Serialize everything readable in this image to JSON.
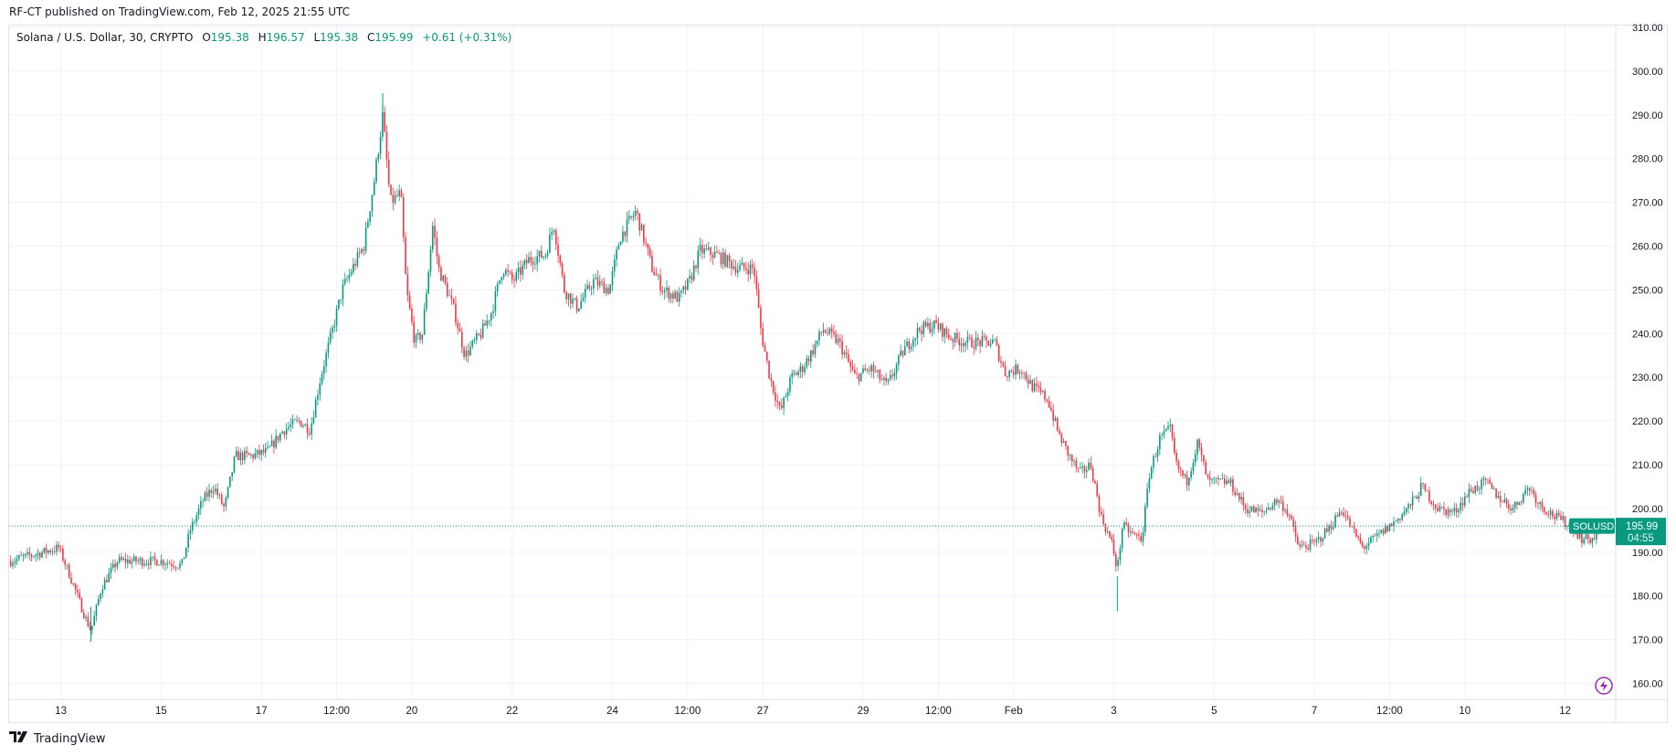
{
  "published": "RF-CT published on TradingView.com, Feb 12, 2025 21:55 UTC",
  "legend": {
    "symbol": "Solana / U.S. Dollar, 30, CRYPTO",
    "o_label": "O",
    "o": "195.38",
    "h_label": "H",
    "h": "196.57",
    "l_label": "L",
    "l": "195.38",
    "c_label": "C",
    "c": "195.99",
    "change": "+0.61 (+0.31%)"
  },
  "last_price": {
    "ticker": "SOLUSD",
    "price": "195.99",
    "countdown": "04:55",
    "value": 195.99
  },
  "brand": "TradingView",
  "colors": {
    "up": "#089981",
    "down": "#f23645",
    "grid": "#f0f3fa",
    "text": "#131722",
    "accent": "#9c27b0"
  },
  "icons": [
    "tradingview-logo-icon",
    "lightning-icon"
  ],
  "chart_data": {
    "type": "candlestick",
    "title": "Solana / U.S. Dollar, 30, CRYPTO",
    "x_unit": "days since Jan 12 2025 00:00 UTC",
    "xlim": [
      -0.2,
      31.75
    ],
    "ylim": [
      157,
      311
    ],
    "grid": true,
    "y_ticks": [
      "160.00",
      "170.00",
      "180.00",
      "190.00",
      "200.00",
      "210.00",
      "220.00",
      "230.00",
      "240.00",
      "250.00",
      "260.00",
      "270.00",
      "280.00",
      "290.00",
      "300.00",
      "310.00"
    ],
    "x_ticks": [
      {
        "d": 1,
        "label": "13"
      },
      {
        "d": 3,
        "label": "15"
      },
      {
        "d": 5,
        "label": "17"
      },
      {
        "d": 6.5,
        "label": "12:00"
      },
      {
        "d": 8,
        "label": "20"
      },
      {
        "d": 10,
        "label": "22"
      },
      {
        "d": 12,
        "label": "24"
      },
      {
        "d": 13.5,
        "label": "12:00"
      },
      {
        "d": 15,
        "label": "27"
      },
      {
        "d": 17,
        "label": "29"
      },
      {
        "d": 18.5,
        "label": "12:00"
      },
      {
        "d": 20,
        "label": "Feb"
      },
      {
        "d": 22,
        "label": "3"
      },
      {
        "d": 24,
        "label": "5"
      },
      {
        "d": 26,
        "label": "7"
      },
      {
        "d": 27.5,
        "label": "12:00"
      },
      {
        "d": 29,
        "label": "10"
      },
      {
        "d": 31,
        "label": "12"
      }
    ],
    "close_path": [
      [
        0,
        188
      ],
      [
        0.64,
        190
      ],
      [
        0.96,
        191
      ],
      [
        1.17,
        185
      ],
      [
        1.49,
        175
      ],
      [
        1.6,
        172
      ],
      [
        1.81,
        182
      ],
      [
        2.13,
        188
      ],
      [
        2.56,
        188
      ],
      [
        2.99,
        188
      ],
      [
        3.41,
        187
      ],
      [
        3.58,
        195
      ],
      [
        3.84,
        202
      ],
      [
        4.05,
        205
      ],
      [
        4.26,
        200
      ],
      [
        4.48,
        212
      ],
      [
        4.8,
        212
      ],
      [
        5.12,
        213
      ],
      [
        5.44,
        218
      ],
      [
        5.76,
        220
      ],
      [
        5.97,
        218
      ],
      [
        6.18,
        230
      ],
      [
        6.4,
        240
      ],
      [
        6.61,
        250
      ],
      [
        6.82,
        255
      ],
      [
        7.04,
        260
      ],
      [
        7.25,
        275
      ],
      [
        7.42,
        290
      ],
      [
        7.57,
        270
      ],
      [
        7.78,
        272
      ],
      [
        7.89,
        250
      ],
      [
        8.06,
        238
      ],
      [
        8.21,
        240
      ],
      [
        8.42,
        265
      ],
      [
        8.53,
        255
      ],
      [
        8.7,
        250
      ],
      [
        8.85,
        245
      ],
      [
        9.06,
        235
      ],
      [
        9.38,
        240
      ],
      [
        9.59,
        245
      ],
      [
        9.81,
        255
      ],
      [
        10.02,
        252
      ],
      [
        10.34,
        257
      ],
      [
        10.66,
        258
      ],
      [
        10.83,
        265
      ],
      [
        11.04,
        250
      ],
      [
        11.3,
        246
      ],
      [
        11.62,
        252
      ],
      [
        11.94,
        250
      ],
      [
        12.15,
        262
      ],
      [
        12.47,
        268
      ],
      [
        12.79,
        255
      ],
      [
        13.01,
        250
      ],
      [
        13.33,
        248
      ],
      [
        13.54,
        252
      ],
      [
        13.75,
        259
      ],
      [
        14.07,
        258
      ],
      [
        14.5,
        255
      ],
      [
        14.82,
        255
      ],
      [
        14.97,
        240
      ],
      [
        15.14,
        230
      ],
      [
        15.35,
        222
      ],
      [
        15.57,
        230
      ],
      [
        15.78,
        232
      ],
      [
        15.99,
        236
      ],
      [
        16.2,
        241
      ],
      [
        16.52,
        238
      ],
      [
        16.84,
        230
      ],
      [
        17.16,
        232
      ],
      [
        17.48,
        228
      ],
      [
        17.8,
        236
      ],
      [
        18.12,
        241
      ],
      [
        18.44,
        242
      ],
      [
        18.76,
        239
      ],
      [
        19.08,
        238
      ],
      [
        19.4,
        238
      ],
      [
        19.62,
        238
      ],
      [
        19.83,
        231
      ],
      [
        20.15,
        232
      ],
      [
        20.36,
        228
      ],
      [
        20.68,
        225
      ],
      [
        20.9,
        217
      ],
      [
        21.11,
        212
      ],
      [
        21.32,
        208
      ],
      [
        21.54,
        210
      ],
      [
        21.75,
        198
      ],
      [
        21.96,
        192
      ],
      [
        22.07,
        186
      ],
      [
        22.17,
        196
      ],
      [
        22.39,
        194
      ],
      [
        22.56,
        193
      ],
      [
        22.71,
        208
      ],
      [
        22.92,
        216
      ],
      [
        23.13,
        218
      ],
      [
        23.24,
        210
      ],
      [
        23.45,
        206
      ],
      [
        23.67,
        215
      ],
      [
        23.88,
        206
      ],
      [
        24.31,
        206
      ],
      [
        24.63,
        200
      ],
      [
        24.95,
        199
      ],
      [
        25.27,
        202
      ],
      [
        25.48,
        199
      ],
      [
        25.69,
        191
      ],
      [
        26.01,
        192
      ],
      [
        26.33,
        196
      ],
      [
        26.55,
        200
      ],
      [
        26.76,
        195
      ],
      [
        26.97,
        191
      ],
      [
        27.29,
        194
      ],
      [
        27.61,
        197
      ],
      [
        27.93,
        201
      ],
      [
        28.14,
        205
      ],
      [
        28.46,
        200
      ],
      [
        28.78,
        199
      ],
      [
        29.1,
        204
      ],
      [
        29.42,
        206
      ],
      [
        29.64,
        203
      ],
      [
        29.96,
        200
      ],
      [
        30.28,
        205
      ],
      [
        30.49,
        201
      ],
      [
        30.81,
        198
      ],
      [
        31.13,
        196
      ],
      [
        31.34,
        193
      ],
      [
        31.56,
        193
      ],
      [
        31.73,
        195.99
      ]
    ],
    "notable_extremes": {
      "high": 295,
      "low": 169.5,
      "feb3_low": 176.5
    }
  }
}
